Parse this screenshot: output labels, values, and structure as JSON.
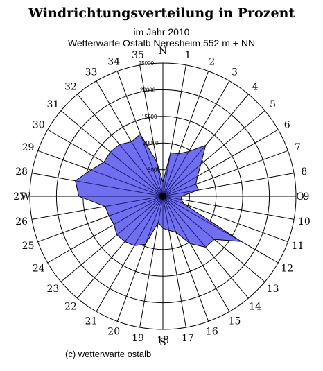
{
  "title": "Windrichtungsverteilung in Prozent",
  "subtitle_line1": "im Jahr 2010",
  "subtitle_line2": "Wetterwarte Ostalb Neresheim 552 m + NN",
  "credit": "(c) wetterwarte ostalb",
  "colors": {
    "area_fill": "#6f6ff0",
    "area_stroke": "#000000",
    "grid": "#000000"
  },
  "chart_data": {
    "type": "radar",
    "title": "Windrichtungsverteilung in Prozent",
    "compass_labels": [
      "N",
      "O",
      "S",
      "W"
    ],
    "direction_labels": [
      "1",
      "2",
      "3",
      "4",
      "5",
      "6",
      "7",
      "8",
      "9",
      "10",
      "11",
      "12",
      "13",
      "14",
      "15",
      "16",
      "17",
      "18",
      "19",
      "20",
      "21",
      "22",
      "23",
      "24",
      "25",
      "26",
      "27",
      "28",
      "29",
      "30",
      "31",
      "32",
      "33",
      "34",
      "35"
    ],
    "radial_ticks": [
      "0",
      "5000",
      "10000",
      "15000",
      "20000",
      "25000"
    ],
    "rlim": [
      0,
      25000
    ],
    "grid": true,
    "series": [
      {
        "directions_deg": [
          0,
          10,
          20,
          30,
          40,
          50,
          60,
          70,
          80,
          90,
          100,
          110,
          120,
          130,
          140,
          150,
          160,
          170,
          180,
          190,
          200,
          210,
          220,
          230,
          240,
          250,
          260,
          270,
          280,
          290,
          300,
          310,
          320,
          330,
          340,
          350
        ],
        "values": [
          2600,
          8300,
          8500,
          9700,
          12500,
          9300,
          7500,
          6600,
          6800,
          3500,
          3500,
          4200,
          17000,
          12600,
          12500,
          10300,
          7200,
          6500,
          6000,
          5000,
          9600,
          10700,
          11100,
          11300,
          10600,
          10800,
          11000,
          15800,
          16700,
          14400,
          12800,
          12900,
          12700,
          11800,
          12400,
          6500
        ]
      }
    ]
  }
}
